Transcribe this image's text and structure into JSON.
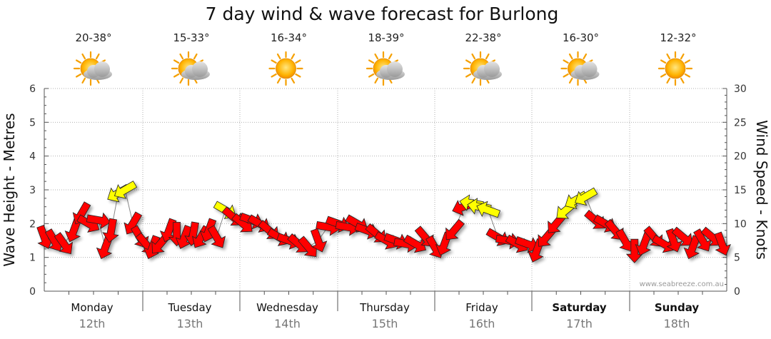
{
  "chart_data": {
    "type": "line",
    "title": "7 day wind & wave forecast for Burlong",
    "ylabel_left": "Wave Height - Metres",
    "ylabel_right": "Wind Speed - Knots",
    "ylim_left": [
      0,
      6
    ],
    "ylim_right": [
      0,
      30
    ],
    "yticks_left": [
      "0",
      "1",
      "2",
      "3",
      "4",
      "5",
      "6"
    ],
    "yticks_right": [
      "0",
      "5",
      "10",
      "15",
      "20",
      "25",
      "30"
    ],
    "grid": "dotted",
    "watermark": "www.seabreeze.com.au",
    "days": [
      {
        "name": "Monday",
        "date": "12th",
        "temp": "20-38°",
        "weather": "partly-cloudy",
        "bold": false
      },
      {
        "name": "Tuesday",
        "date": "13th",
        "temp": "15-33°",
        "weather": "partly-cloudy",
        "bold": false
      },
      {
        "name": "Wednesday",
        "date": "14th",
        "temp": "16-34°",
        "weather": "sunny",
        "bold": false
      },
      {
        "name": "Thursday",
        "date": "15th",
        "temp": "18-39°",
        "weather": "partly-cloudy",
        "bold": false
      },
      {
        "name": "Friday",
        "date": "16th",
        "temp": "22-38°",
        "weather": "partly-cloudy",
        "bold": false
      },
      {
        "name": "Saturday",
        "date": "17th",
        "temp": "16-30°",
        "weather": "partly-cloudy",
        "bold": true
      },
      {
        "name": "Sunday",
        "date": "18th",
        "temp": "12-32°",
        "weather": "sunny",
        "bold": true
      }
    ],
    "wind_series": {
      "name": "Wind",
      "color_strong": "#ff0000",
      "color_light": "#ffff00",
      "points": [
        {
          "t": 0.0,
          "knots": 8.0,
          "dir": 160
        },
        {
          "t": 0.1,
          "knots": 7.5,
          "dir": 150
        },
        {
          "t": 0.2,
          "knots": 7.0,
          "dir": 145
        },
        {
          "t": 0.3,
          "knots": 9.0,
          "dir": 200
        },
        {
          "t": 0.38,
          "knots": 11.5,
          "dir": 210
        },
        {
          "t": 0.45,
          "knots": 10.0,
          "dir": 120
        },
        {
          "t": 0.55,
          "knots": 10.5,
          "dir": 100
        },
        {
          "t": 0.62,
          "knots": 6.5,
          "dir": 200
        },
        {
          "t": 0.68,
          "knots": 9.0,
          "dir": 190
        },
        {
          "t": 0.75,
          "knots": 14.5,
          "dir": 240,
          "light": true
        },
        {
          "t": 0.82,
          "knots": 15.0,
          "dir": 240,
          "light": true
        },
        {
          "t": 0.9,
          "knots": 10.0,
          "dir": 210
        },
        {
          "t": 0.97,
          "knots": 8.0,
          "dir": 150
        },
        {
          "t": 1.03,
          "knots": 7.0,
          "dir": 140
        },
        {
          "t": 1.1,
          "knots": 6.5,
          "dir": 200
        },
        {
          "t": 1.18,
          "knots": 7.0,
          "dir": 220
        },
        {
          "t": 1.27,
          "knots": 9.0,
          "dir": 200
        },
        {
          "t": 1.35,
          "knots": 8.5,
          "dir": 180
        },
        {
          "t": 1.43,
          "knots": 8.0,
          "dir": 200
        },
        {
          "t": 1.52,
          "knots": 8.5,
          "dir": 190
        },
        {
          "t": 1.6,
          "knots": 8.0,
          "dir": 210
        },
        {
          "t": 1.68,
          "knots": 9.0,
          "dir": 200
        },
        {
          "t": 1.76,
          "knots": 8.0,
          "dir": 150
        },
        {
          "t": 1.85,
          "knots": 12.0,
          "dir": 120,
          "light": true
        },
        {
          "t": 1.93,
          "knots": 11.0,
          "dir": 130
        },
        {
          "t": 2.03,
          "knots": 10.0,
          "dir": 130
        },
        {
          "t": 2.12,
          "knots": 10.5,
          "dir": 110
        },
        {
          "t": 2.2,
          "knots": 10.0,
          "dir": 120
        },
        {
          "t": 2.3,
          "knots": 9.0,
          "dir": 130
        },
        {
          "t": 2.4,
          "knots": 8.0,
          "dir": 120
        },
        {
          "t": 2.5,
          "knots": 7.5,
          "dir": 110
        },
        {
          "t": 2.6,
          "knots": 7.0,
          "dir": 130
        },
        {
          "t": 2.7,
          "knots": 6.5,
          "dir": 140
        },
        {
          "t": 2.8,
          "knots": 7.5,
          "dir": 160
        },
        {
          "t": 2.9,
          "knots": 9.5,
          "dir": 100
        },
        {
          "t": 3.0,
          "knots": 10.0,
          "dir": 110
        },
        {
          "t": 3.1,
          "knots": 9.5,
          "dir": 100
        },
        {
          "t": 3.2,
          "knots": 10.0,
          "dir": 120
        },
        {
          "t": 3.3,
          "knots": 9.0,
          "dir": 110
        },
        {
          "t": 3.4,
          "knots": 8.5,
          "dir": 130
        },
        {
          "t": 3.5,
          "knots": 7.5,
          "dir": 120
        },
        {
          "t": 3.6,
          "knots": 7.5,
          "dir": 110
        },
        {
          "t": 3.7,
          "knots": 7.0,
          "dir": 100
        },
        {
          "t": 3.8,
          "knots": 7.0,
          "dir": 120
        },
        {
          "t": 3.9,
          "knots": 8.0,
          "dir": 140
        },
        {
          "t": 4.0,
          "knots": 6.5,
          "dir": 150
        },
        {
          "t": 4.1,
          "knots": 7.0,
          "dir": 200
        },
        {
          "t": 4.2,
          "knots": 9.0,
          "dir": 220
        },
        {
          "t": 4.3,
          "knots": 12.5,
          "dir": 250
        },
        {
          "t": 4.38,
          "knots": 13.0,
          "dir": 280,
          "light": true
        },
        {
          "t": 4.46,
          "knots": 12.5,
          "dir": 280,
          "light": true
        },
        {
          "t": 4.55,
          "knots": 12.0,
          "dir": 290,
          "light": true
        },
        {
          "t": 4.65,
          "knots": 8.0,
          "dir": 120
        },
        {
          "t": 4.75,
          "knots": 7.5,
          "dir": 100
        },
        {
          "t": 4.85,
          "knots": 7.0,
          "dir": 120
        },
        {
          "t": 4.95,
          "knots": 7.0,
          "dir": 110
        },
        {
          "t": 5.05,
          "knots": 6.0,
          "dir": 200
        },
        {
          "t": 5.15,
          "knots": 8.0,
          "dir": 220
        },
        {
          "t": 5.25,
          "knots": 10.0,
          "dir": 220
        },
        {
          "t": 5.35,
          "knots": 12.0,
          "dir": 230,
          "light": true
        },
        {
          "t": 5.45,
          "knots": 13.5,
          "dir": 240,
          "light": true
        },
        {
          "t": 5.55,
          "knots": 14.0,
          "dir": 240,
          "light": true
        },
        {
          "t": 5.65,
          "knots": 10.5,
          "dir": 130
        },
        {
          "t": 5.75,
          "knots": 10.0,
          "dir": 120
        },
        {
          "t": 5.85,
          "knots": 9.0,
          "dir": 140
        },
        {
          "t": 5.95,
          "knots": 7.5,
          "dir": 150
        },
        {
          "t": 6.05,
          "knots": 6.0,
          "dir": 180
        },
        {
          "t": 6.15,
          "knots": 7.0,
          "dir": 200
        },
        {
          "t": 6.25,
          "knots": 8.0,
          "dir": 140
        },
        {
          "t": 6.35,
          "knots": 7.0,
          "dir": 120
        },
        {
          "t": 6.45,
          "knots": 7.5,
          "dir": 160
        },
        {
          "t": 6.55,
          "knots": 8.0,
          "dir": 130
        },
        {
          "t": 6.65,
          "knots": 6.5,
          "dir": 200
        },
        {
          "t": 6.75,
          "knots": 7.5,
          "dir": 150
        },
        {
          "t": 6.85,
          "knots": 8.0,
          "dir": 130
        },
        {
          "t": 6.95,
          "knots": 7.0,
          "dir": 160
        }
      ]
    }
  }
}
